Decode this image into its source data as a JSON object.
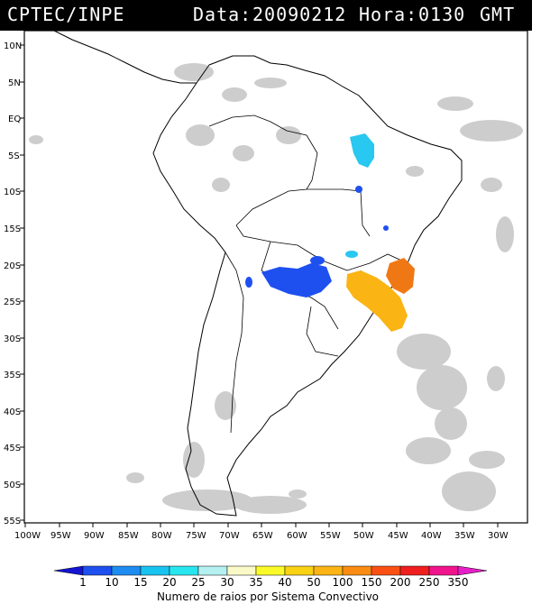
{
  "header": {
    "source": "CPTEC/INPE",
    "date_label": "Data:",
    "date_value": "20090212",
    "hour_label": "Hora:",
    "hour_value": "0130",
    "timezone": "GMT"
  },
  "map": {
    "lat_labels": [
      "10N",
      "5N",
      "EQ",
      "5S",
      "10S",
      "15S",
      "20S",
      "25S",
      "30S",
      "35S",
      "40S",
      "45S",
      "50S",
      "55S"
    ],
    "lon_labels": [
      "100W",
      "95W",
      "90W",
      "85W",
      "80W",
      "75W",
      "70W",
      "65W",
      "60W",
      "55W",
      "50W",
      "45W",
      "40W",
      "35W",
      "30W"
    ],
    "convective_systems": [
      {
        "region": "north Brazil",
        "color_class": "20-25"
      },
      {
        "region": "Paraguay / north Argentina",
        "color_class": "10-15"
      },
      {
        "region": "southeast Brazil",
        "color_class": "150-250"
      },
      {
        "region": "south Brazil",
        "color_class": "50-100"
      }
    ]
  },
  "legend": {
    "title": "Numero de raios por Sistema Convectivo",
    "ticks": [
      "1",
      "10",
      "15",
      "20",
      "25",
      "30",
      "35",
      "40",
      "50",
      "100",
      "150",
      "200",
      "250",
      "350"
    ],
    "colors": [
      "#1414d2",
      "#1e50f0",
      "#1e8cf0",
      "#19c3f0",
      "#28e6f0",
      "#b4f0f0",
      "#fafac8",
      "#fafa28",
      "#fad214",
      "#fab414",
      "#fa8c14",
      "#fa5014",
      "#f01e1e",
      "#f0148c",
      "#e61ec8"
    ]
  }
}
